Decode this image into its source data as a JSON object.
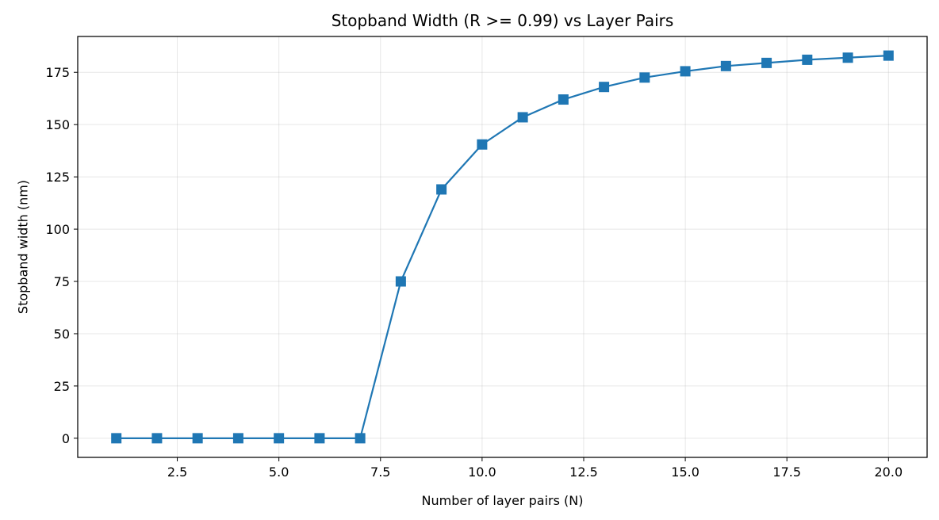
{
  "chart_data": {
    "type": "line",
    "title": "Stopband Width (R >= 0.99) vs Layer Pairs",
    "xlabel": "Number of layer pairs (N)",
    "ylabel": "Stopband width (nm)",
    "xlim": [
      0.05,
      20.95
    ],
    "ylim": [
      -9.15,
      192.15
    ],
    "xticks": [
      2.5,
      5.0,
      7.5,
      10.0,
      12.5,
      15.0,
      17.5,
      20.0
    ],
    "xtick_labels": [
      "2.5",
      "5.0",
      "7.5",
      "10.0",
      "12.5",
      "15.0",
      "17.5",
      "20.0"
    ],
    "yticks": [
      0,
      25,
      50,
      75,
      100,
      125,
      150,
      175
    ],
    "ytick_labels": [
      "0",
      "25",
      "50",
      "75",
      "100",
      "125",
      "150",
      "175"
    ],
    "grid": true,
    "marker": "square",
    "color": "#1f77b4",
    "series": [
      {
        "x": [
          1,
          2,
          3,
          4,
          5,
          6,
          7,
          8,
          9,
          10,
          11,
          12,
          13,
          14,
          15,
          16,
          17,
          18,
          19,
          20
        ],
        "values": [
          0,
          0,
          0,
          0,
          0,
          0,
          0,
          75,
          119,
          140.5,
          153.5,
          162,
          168,
          172.5,
          175.5,
          178,
          179.5,
          181,
          182,
          183
        ]
      }
    ]
  }
}
